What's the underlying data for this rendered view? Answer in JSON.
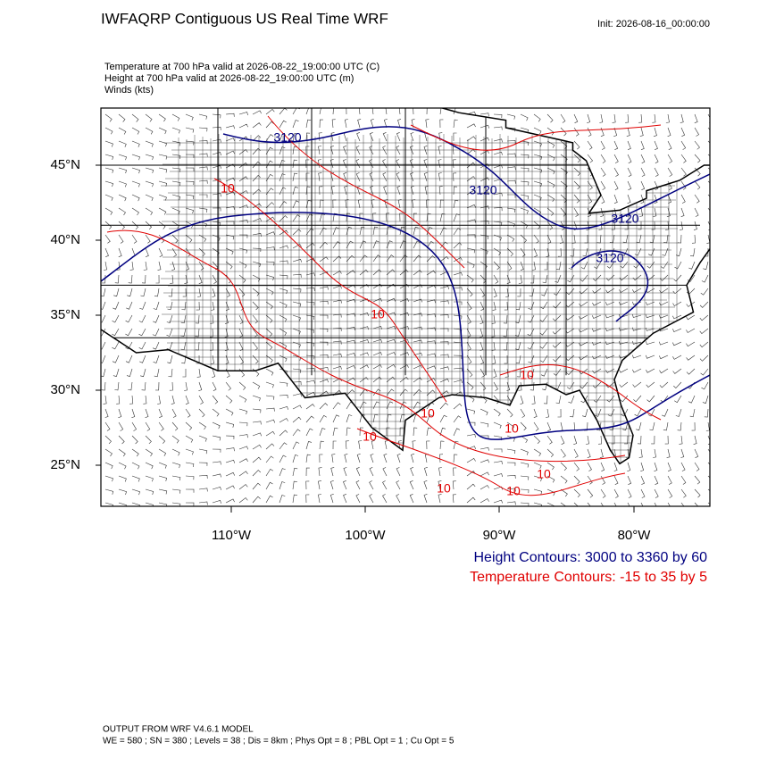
{
  "header": {
    "title": "IWFAQRP Contiguous US Real Time WRF",
    "init": "Init: 2026-08-16_00:00:00"
  },
  "fields": [
    "Temperature at 700 hPa valid at 2026-08-22_19:00:00 UTC   (C)",
    "Height at 700 hPa valid at 2026-08-22_19:00:00 UTC   (m)",
    "Winds   (kts)"
  ],
  "lat_labels": [
    "45°N",
    "40°N",
    "35°N",
    "30°N",
    "25°N"
  ],
  "lon_labels": [
    "110°W",
    "100°W",
    "90°W",
    "80°W"
  ],
  "contour_labels": {
    "height": [
      "3120",
      "3120",
      "3120",
      "3120"
    ],
    "temperature": [
      "10",
      "10",
      "10",
      "10",
      "10",
      "10",
      "10",
      "10",
      "10"
    ]
  },
  "legend": [
    "Height Contours: 3000 to 3360 by 60",
    "Temperature Contours: -15 to 35 by 5"
  ],
  "footer": [
    "OUTPUT FROM WRF V4.6.1 MODEL",
    "WE = 580 ; SN = 380 ; Levels = 38 ; Dis = 8km ; Phys Opt = 8 ; PBL Opt = 1 ; Cu Opt = 5"
  ]
}
